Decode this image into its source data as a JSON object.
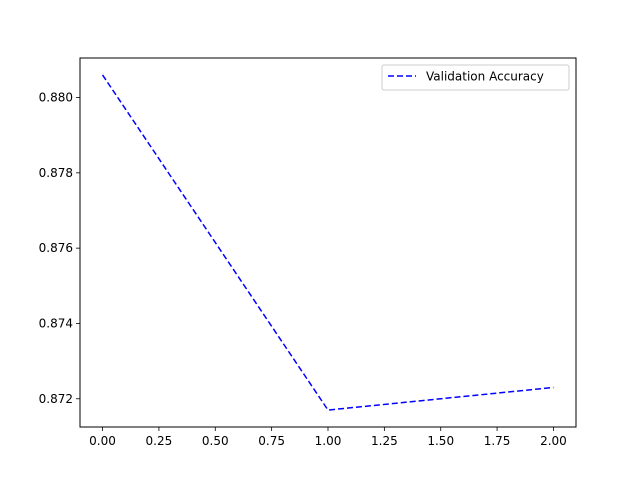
{
  "chart_data": {
    "type": "line",
    "title": "",
    "xlabel": "",
    "ylabel": "",
    "x": [
      0,
      1,
      2
    ],
    "series": [
      {
        "name": "Validation Accuracy",
        "values": [
          0.8806,
          0.8717,
          0.8723
        ],
        "color": "#0000ff",
        "line_style": "dashed"
      }
    ],
    "xlim": [
      -0.1,
      2.1
    ],
    "ylim": [
      0.87125,
      0.88105
    ],
    "x_ticks": [
      0.0,
      0.25,
      0.5,
      0.75,
      1.0,
      1.25,
      1.5,
      1.75,
      2.0
    ],
    "x_tick_labels": [
      "0.00",
      "0.25",
      "0.50",
      "0.75",
      "1.00",
      "1.25",
      "1.50",
      "1.75",
      "2.00"
    ],
    "y_ticks": [
      0.872,
      0.874,
      0.876,
      0.878,
      0.88
    ],
    "y_tick_labels": [
      "0.872",
      "0.874",
      "0.876",
      "0.878",
      "0.880"
    ],
    "grid": false,
    "legend_position": "top-right"
  }
}
